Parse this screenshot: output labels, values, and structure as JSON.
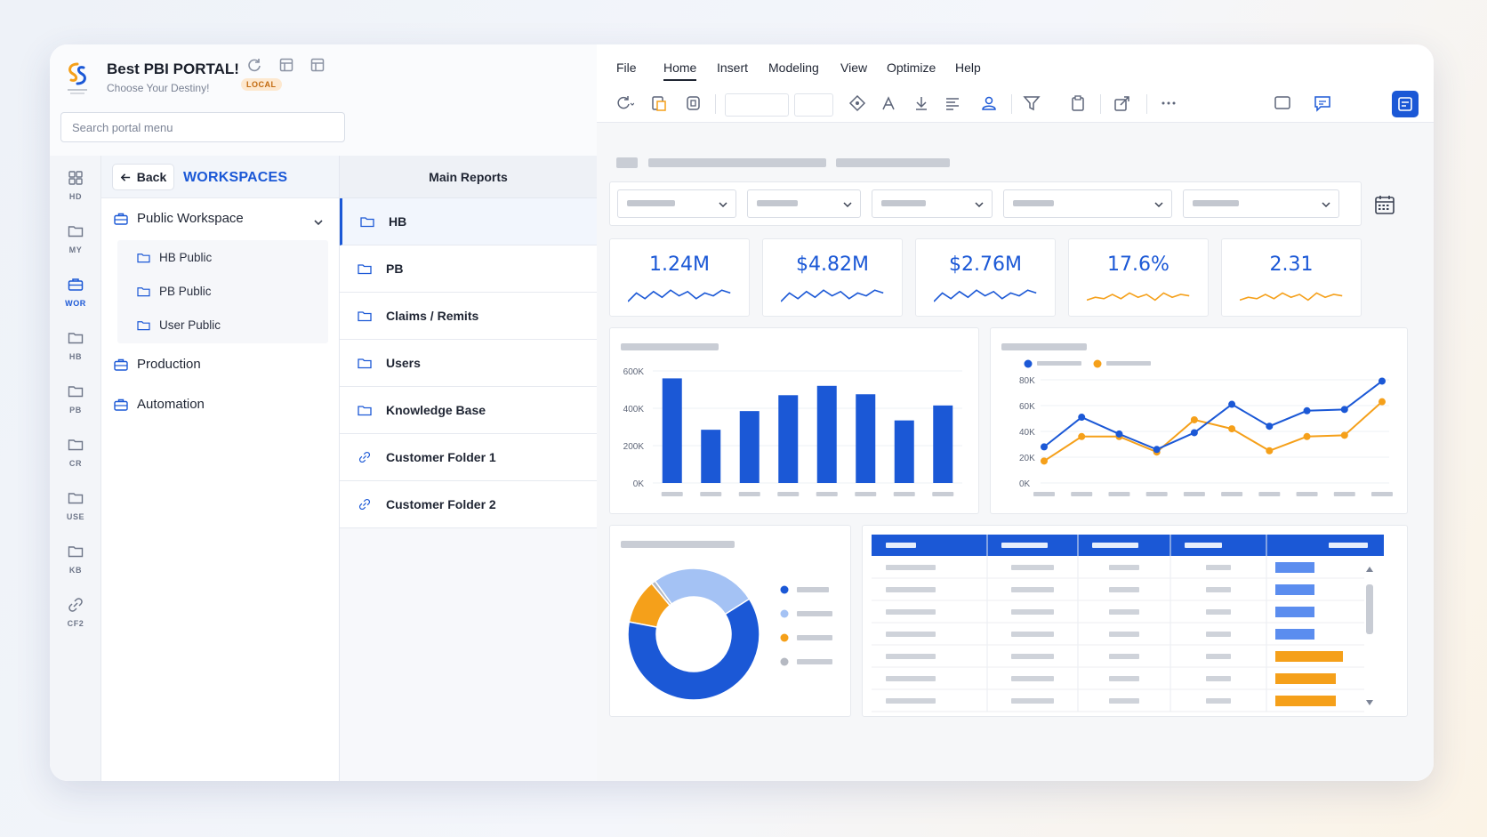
{
  "portal": {
    "title": "Best PBI PORTAL!",
    "subtitle": "Choose Your Destiny!",
    "badge": "LOCAL",
    "search_placeholder": "Search portal menu"
  },
  "rail": [
    {
      "label": "HD",
      "icon": "grid-icon"
    },
    {
      "label": "MY",
      "icon": "folder-icon"
    },
    {
      "label": "WOR",
      "icon": "briefcase-icon",
      "active": true
    },
    {
      "label": "HB",
      "icon": "folder-icon"
    },
    {
      "label": "PB",
      "icon": "folder-icon"
    },
    {
      "label": "CR",
      "icon": "folder-icon"
    },
    {
      "label": "USE",
      "icon": "folder-icon"
    },
    {
      "label": "KB",
      "icon": "folder-icon"
    },
    {
      "label": "CF2",
      "icon": "link-icon"
    }
  ],
  "tree": {
    "back_label": "Back",
    "section_title": "WORKSPACES",
    "workspaces": [
      {
        "label": "Public Workspace",
        "expanded": true,
        "children": [
          "HB Public",
          "PB Public",
          "User Public"
        ]
      },
      {
        "label": "Production"
      },
      {
        "label": "Automation"
      }
    ]
  },
  "reports": {
    "header": "Main Reports",
    "items": [
      {
        "label": "HB",
        "icon": "folder-icon",
        "active": true
      },
      {
        "label": "PB",
        "icon": "folder-icon"
      },
      {
        "label": "Claims / Remits",
        "icon": "folder-icon"
      },
      {
        "label": "Users",
        "icon": "folder-icon"
      },
      {
        "label": "Knowledge Base",
        "icon": "folder-icon"
      },
      {
        "label": "Customer Folder 1",
        "icon": "link-icon"
      },
      {
        "label": "Customer Folder 2",
        "icon": "link-icon"
      }
    ]
  },
  "menu": {
    "items": [
      "File",
      "Home",
      "Insert",
      "Modeling",
      "View",
      "Optimize",
      "Help"
    ],
    "active": "Home"
  },
  "kpis": [
    {
      "value": "1.24M",
      "color": "#1b58d6"
    },
    {
      "value": "$4.82M",
      "color": "#1b58d6"
    },
    {
      "value": "$2.76M",
      "color": "#1b58d6"
    },
    {
      "value": "17.6%",
      "color": "#f5a01a"
    },
    {
      "value": "2.31",
      "color": "#f5a01a"
    }
  ],
  "colors": {
    "primary": "#1b58d6",
    "accent": "#f5a01a",
    "light_blue": "#a4c2f4",
    "gray": "#b5b9c2"
  },
  "chart_data": [
    {
      "type": "bar",
      "values": [
        560,
        285,
        385,
        470,
        520,
        475,
        335,
        415
      ],
      "ylim": [
        0,
        600
      ],
      "yticks": [
        "0K",
        "200K",
        "400K",
        "600K"
      ],
      "color": "#1b58d6"
    },
    {
      "type": "line",
      "ylim": [
        0,
        80
      ],
      "yticks": [
        "0K",
        "20K",
        "40K",
        "60K",
        "80K"
      ],
      "series": [
        {
          "color": "#1b58d6",
          "values": [
            28,
            51,
            38,
            26,
            39,
            61,
            44,
            56,
            57,
            79
          ]
        },
        {
          "color": "#f5a01a",
          "values": [
            17,
            36,
            36,
            24,
            49,
            42,
            25,
            36,
            37,
            63
          ]
        }
      ]
    },
    {
      "type": "pie",
      "donut": true,
      "values": [
        62,
        26,
        11,
        1
      ],
      "colors": [
        "#1b58d6",
        "#a4c2f4",
        "#f5a01a",
        "#b5b9c2"
      ]
    },
    {
      "type": "table",
      "rows": 7,
      "bar_values": [
        0.55,
        0.55,
        0.55,
        0.55,
        0.95,
        0.85,
        0.85
      ],
      "bar_colors": [
        "#5b8def",
        "#5b8def",
        "#5b8def",
        "#5b8def",
        "#f5a01a",
        "#f5a01a",
        "#f5a01a"
      ]
    }
  ]
}
